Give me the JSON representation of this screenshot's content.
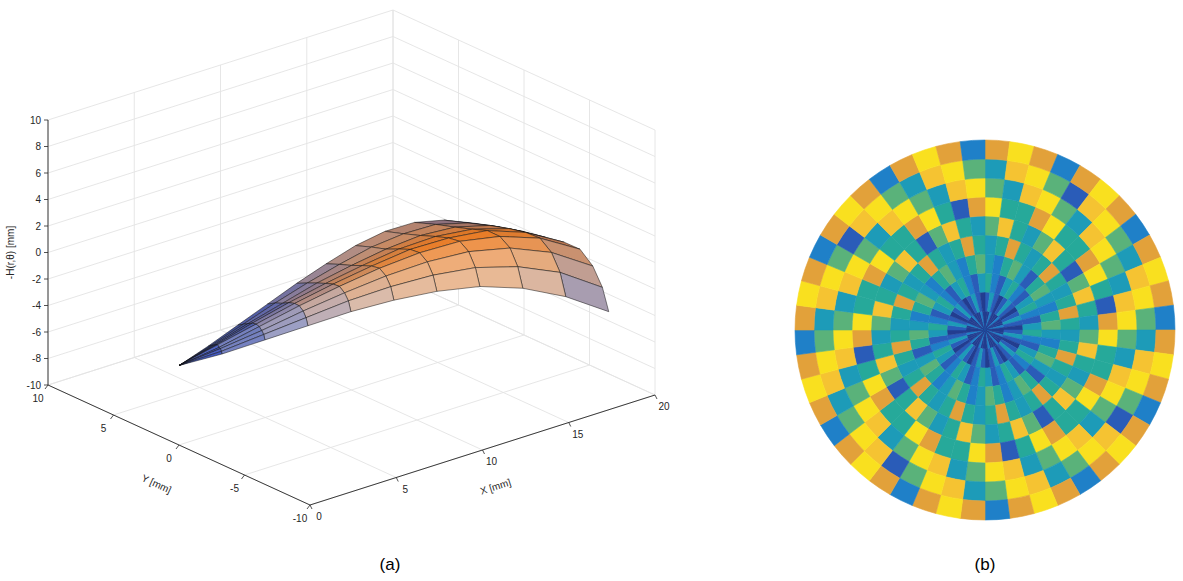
{
  "chart_data": [
    {
      "type": "surface",
      "title": "(a)",
      "xlabel": "X [mm]",
      "ylabel": "Y [mm]",
      "zlabel": "-H(r,θ) [mm]",
      "xlim": [
        0,
        20
      ],
      "xticks": [
        0,
        5,
        10,
        15,
        20
      ],
      "ylim": [
        -10,
        10
      ],
      "yticks": [
        -10,
        -5,
        0,
        5,
        10
      ],
      "zlim": [
        -10,
        10
      ],
      "zticks": [
        -10,
        -8,
        -6,
        -4,
        -2,
        0,
        2,
        4,
        6,
        8,
        10
      ],
      "grid": true,
      "surface": {
        "r": [
          0,
          2,
          4,
          6,
          8,
          10,
          12,
          14,
          16,
          18,
          20
        ],
        "theta": [
          -30,
          -25,
          -20,
          -15,
          -10,
          -5,
          0,
          5,
          10
        ],
        "z": [
          [
            -4.0,
            -4.0,
            -4.0,
            -4.0,
            -4.0,
            -4.0,
            -4.0,
            -4.0,
            -4.0
          ],
          [
            -3.4,
            -3.3,
            -3.2,
            -3.2,
            -3.1,
            -3.2,
            -3.3,
            -3.4,
            -3.5
          ],
          [
            -2.6,
            -2.4,
            -2.3,
            -2.2,
            -2.2,
            -2.3,
            -2.5,
            -2.7,
            -2.9
          ],
          [
            -1.8,
            -1.5,
            -1.3,
            -1.2,
            -1.3,
            -1.5,
            -1.8,
            -2.0,
            -2.3
          ],
          [
            -1.0,
            -0.6,
            -0.4,
            -0.3,
            -0.5,
            -0.8,
            -1.1,
            -1.4,
            -1.7
          ],
          [
            -0.4,
            0.1,
            0.4,
            0.5,
            0.2,
            -0.2,
            -0.6,
            -0.9,
            -1.2
          ],
          [
            0.0,
            0.6,
            1.0,
            1.1,
            0.8,
            0.3,
            -0.2,
            -0.5,
            -0.8
          ],
          [
            0.1,
            0.8,
            1.3,
            1.4,
            1.0,
            0.5,
            0.0,
            -0.4,
            -0.7
          ],
          [
            -0.3,
            0.5,
            1.1,
            1.2,
            0.9,
            0.3,
            -0.2,
            -0.6,
            -1.0
          ],
          [
            -1.2,
            -0.3,
            0.3,
            0.5,
            0.1,
            -0.4,
            -0.9,
            -1.4,
            -1.8
          ],
          [
            -2.6,
            -1.8,
            -1.2,
            -0.9,
            -1.3,
            -1.8,
            -2.2,
            -2.6,
            -3.0
          ]
        ]
      }
    },
    {
      "type": "contour",
      "title": "(b)",
      "tick_labels": false,
      "clim": [
        0,
        1
      ],
      "cells": [
        [
          0.1,
          0.1,
          0.25,
          0.1,
          0.1,
          0.1,
          0.25,
          0.1,
          0.1,
          0.1,
          0.25,
          0.1,
          0.1,
          0.1,
          0.25,
          0.1,
          0.1,
          0.1,
          0.25,
          0.1,
          0.1,
          0.1,
          0.25,
          0.1,
          0.1,
          0.1,
          0.25,
          0.1,
          0.1,
          0.1,
          0.25,
          0.1,
          0.1,
          0.1,
          0.25,
          0.1,
          0.1,
          0.1,
          0.25,
          0.1,
          0.1,
          0.1,
          0.25,
          0.1,
          0.1,
          0.1,
          0.25,
          0.1
        ],
        [
          0.2,
          0.35,
          0.2,
          0.1,
          0.2,
          0.35,
          0.2,
          0.1,
          0.2,
          0.35,
          0.2,
          0.1,
          0.2,
          0.35,
          0.2,
          0.1,
          0.2,
          0.35,
          0.2,
          0.1,
          0.2,
          0.35,
          0.2,
          0.1,
          0.2,
          0.35,
          0.2,
          0.1,
          0.2,
          0.35,
          0.2,
          0.1,
          0.2,
          0.35,
          0.2,
          0.1,
          0.2,
          0.35,
          0.2,
          0.1,
          0.2,
          0.35,
          0.2,
          0.1,
          0.2,
          0.35,
          0.2,
          0.1
        ],
        [
          0.5,
          0.3,
          0.2,
          0.35,
          0.5,
          0.3,
          0.2,
          0.35,
          0.5,
          0.3,
          0.2,
          0.35,
          0.5,
          0.3,
          0.2,
          0.35,
          0.5,
          0.3,
          0.2,
          0.35,
          0.5,
          0.3,
          0.2,
          0.35,
          0.5,
          0.3,
          0.2,
          0.35,
          0.5,
          0.3,
          0.2,
          0.35,
          0.5,
          0.3,
          0.2,
          0.35,
          0.5,
          0.3,
          0.2,
          0.35,
          0.5,
          0.3,
          0.2,
          0.35,
          0.5,
          0.3,
          0.2,
          0.35
        ],
        [
          0.4,
          0.3,
          0.45,
          0.6,
          0.4,
          0.2,
          0.45,
          0.6,
          0.4,
          0.3,
          0.45,
          0.6,
          0.4,
          0.3,
          0.45,
          0.6,
          0.4,
          0.2,
          0.45,
          0.6,
          0.4,
          0.3,
          0.45,
          0.6,
          0.4,
          0.3,
          0.45,
          0.6,
          0.4,
          0.3,
          0.45,
          0.6,
          0.4,
          0.2,
          0.45,
          0.6,
          0.4,
          0.3,
          0.45,
          0.6,
          0.4,
          0.3,
          0.45,
          0.6,
          0.4,
          0.3,
          0.45,
          0.6
        ],
        [
          0.35,
          0.55,
          0.75,
          0.45,
          0.35,
          0.55,
          0.75,
          0.45,
          0.35,
          0.55,
          0.75,
          0.45,
          0.35,
          0.55,
          0.75,
          0.45,
          0.35,
          0.55,
          0.75,
          0.45,
          0.35,
          0.55,
          0.75,
          0.45,
          0.35,
          0.55,
          0.75,
          0.45,
          0.35,
          0.55,
          0.75,
          0.45,
          0.35,
          0.55,
          0.75,
          0.45,
          0.35,
          0.55,
          0.75,
          0.45,
          0.35,
          0.55,
          0.75,
          0.45,
          0.35,
          0.55,
          0.75,
          0.45
        ],
        [
          0.6,
          0.85,
          0.5,
          0.4,
          0.6,
          0.85,
          0.5,
          0.2,
          0.6,
          0.85,
          0.5,
          0.4,
          0.6,
          0.85,
          0.5,
          0.4,
          0.6,
          0.85,
          0.5,
          0.2,
          0.6,
          0.85,
          0.5,
          0.4,
          0.6,
          0.85,
          0.5,
          0.4,
          0.6,
          0.85,
          0.5,
          0.2,
          0.6,
          0.85,
          0.5,
          0.4,
          0.6,
          0.85,
          0.5,
          0.4,
          0.6,
          0.85,
          0.5,
          0.2,
          0.6,
          0.85,
          0.5,
          0.4
        ],
        [
          0.95,
          0.55,
          0.45,
          0.75,
          0.95,
          0.55,
          0.45,
          0.75,
          0.95,
          0.55,
          0.2,
          0.75,
          0.95,
          0.55,
          0.45,
          0.75,
          0.95,
          0.55,
          0.45,
          0.75,
          0.95,
          0.55,
          0.2,
          0.75,
          0.95,
          0.55,
          0.45,
          0.75,
          0.95,
          0.55,
          0.45,
          0.75,
          0.95,
          0.55,
          0.2,
          0.75,
          0.95,
          0.55,
          0.45,
          0.75,
          0.95,
          0.55,
          0.45,
          0.75,
          0.95,
          0.55,
          0.2,
          0.75
        ],
        [
          0.6,
          0.4,
          0.8,
          1.0,
          0.6,
          0.4,
          0.8,
          1.0,
          0.6,
          0.4,
          0.8,
          1.0,
          0.6,
          0.4,
          0.8,
          1.0,
          0.6,
          0.4,
          0.8,
          1.0,
          0.6,
          0.4,
          0.8,
          1.0,
          0.6,
          0.4,
          0.8,
          1.0,
          0.6,
          0.4,
          0.8,
          1.0,
          0.6,
          0.4,
          0.8,
          1.0,
          0.6,
          0.4,
          0.8,
          1.0,
          0.6,
          0.4,
          0.8,
          1.0,
          0.6,
          0.4,
          0.8,
          1.0
        ],
        [
          0.35,
          0.8,
          1.0,
          0.65,
          0.2,
          0.8,
          1.0,
          0.65,
          0.35,
          0.8,
          1.0,
          0.65,
          0.35,
          0.8,
          1.0,
          0.65,
          0.2,
          0.8,
          1.0,
          0.65,
          0.35,
          0.8,
          1.0,
          0.65,
          0.35,
          0.8,
          1.0,
          0.65,
          0.2,
          0.8,
          1.0,
          0.65,
          0.35,
          0.8,
          1.0,
          0.65,
          0.35,
          0.8,
          1.0,
          0.65,
          0.2,
          0.8,
          1.0,
          0.65,
          0.35,
          0.8,
          1.0,
          0.65
        ],
        [
          0.75,
          1.0,
          0.7,
          0.3,
          0.75,
          1.0,
          0.7,
          0.3,
          0.75,
          1.0,
          0.7,
          0.3,
          0.75,
          1.0,
          0.7,
          0.3,
          0.75,
          1.0,
          0.7,
          0.3,
          0.75,
          1.0,
          0.7,
          0.3,
          0.75,
          1.0,
          0.7,
          0.3,
          0.75,
          1.0,
          0.7,
          0.3,
          0.75,
          1.0,
          0.7,
          0.3,
          0.75,
          1.0,
          0.7,
          0.3,
          0.75,
          1.0,
          0.7,
          0.3,
          0.75,
          1.0,
          0.7,
          0.3
        ]
      ]
    }
  ]
}
